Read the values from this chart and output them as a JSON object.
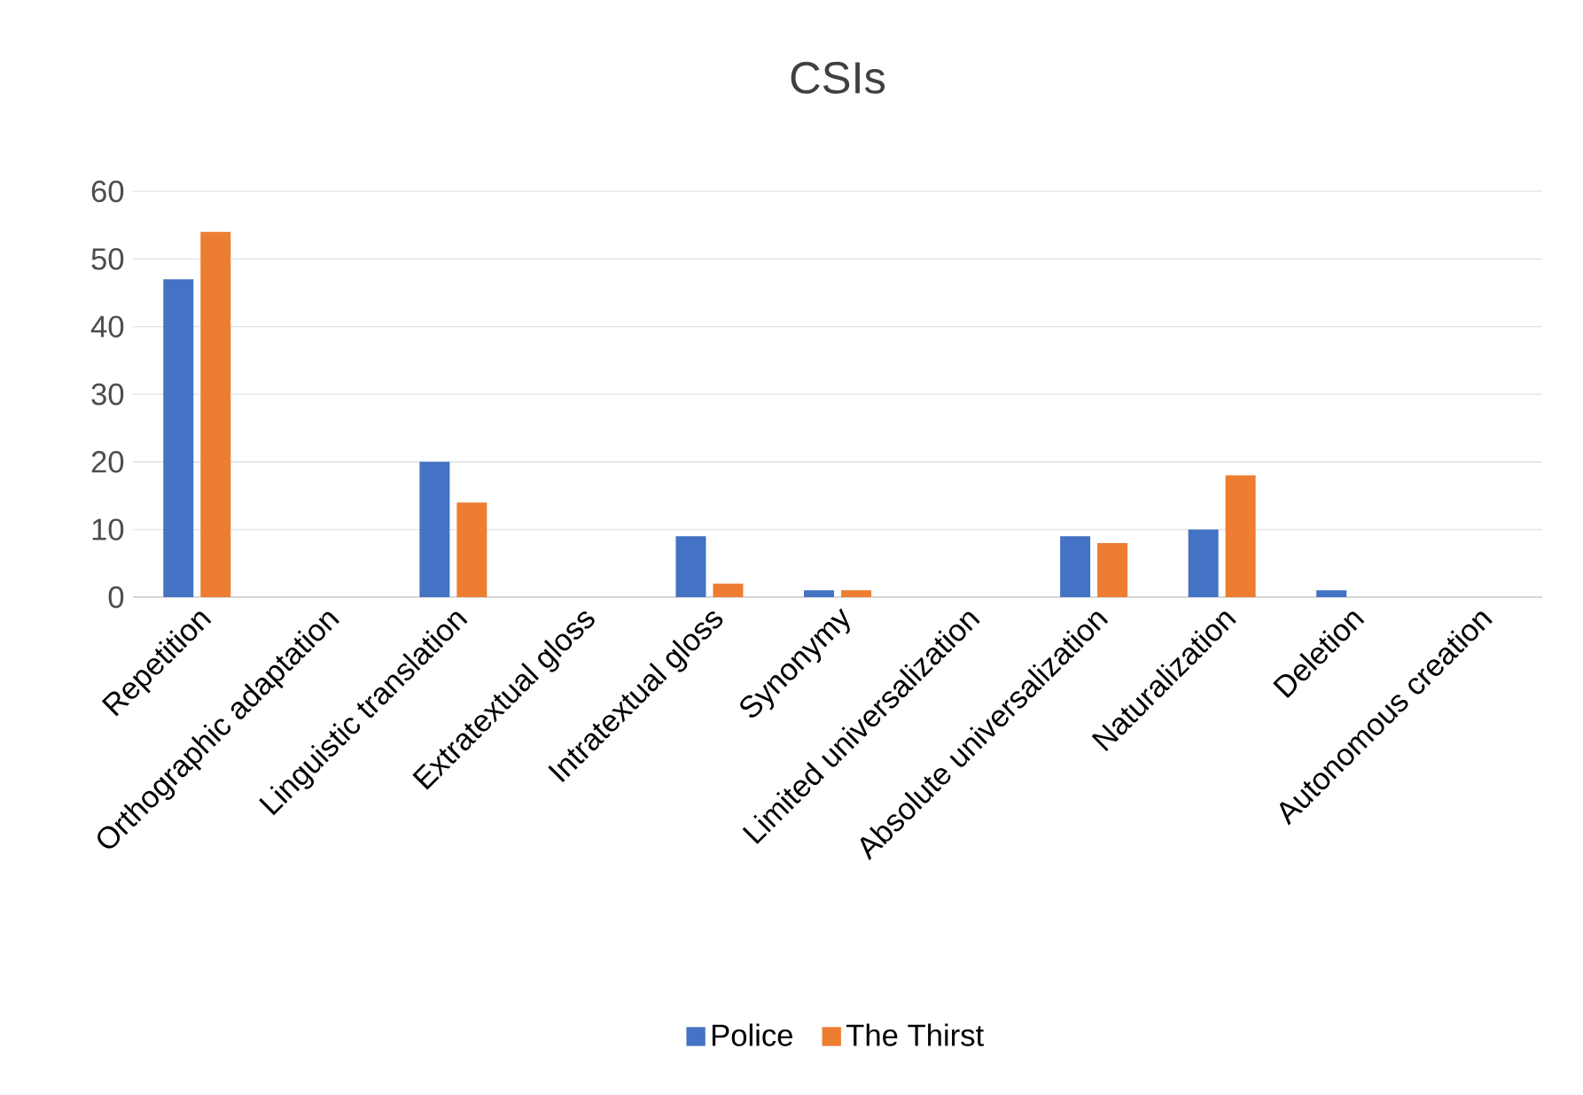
{
  "chart_data": {
    "type": "bar",
    "title": "CSIs",
    "categories": [
      "Repetition",
      "Orthographic adaptation",
      "Linguistic translation",
      "Extratextual gloss",
      "Intratextual gloss",
      "Synonymy",
      "Limited universalization",
      "Absolute universalization",
      "Naturalization",
      "Deletion",
      "Autonomous creation"
    ],
    "series": [
      {
        "name": "Police",
        "color": "#4472c4",
        "values": [
          47,
          0,
          20,
          0,
          9,
          1,
          0,
          9,
          10,
          1,
          0
        ]
      },
      {
        "name": "The Thirst",
        "color": "#ed7d31",
        "values": [
          54,
          0,
          14,
          0,
          2,
          1,
          0,
          8,
          18,
          0,
          0
        ]
      }
    ],
    "ylim": [
      0,
      60
    ],
    "yticks": [
      0,
      10,
      20,
      30,
      40,
      50,
      60
    ],
    "grid": "y",
    "legend": "bottom"
  }
}
